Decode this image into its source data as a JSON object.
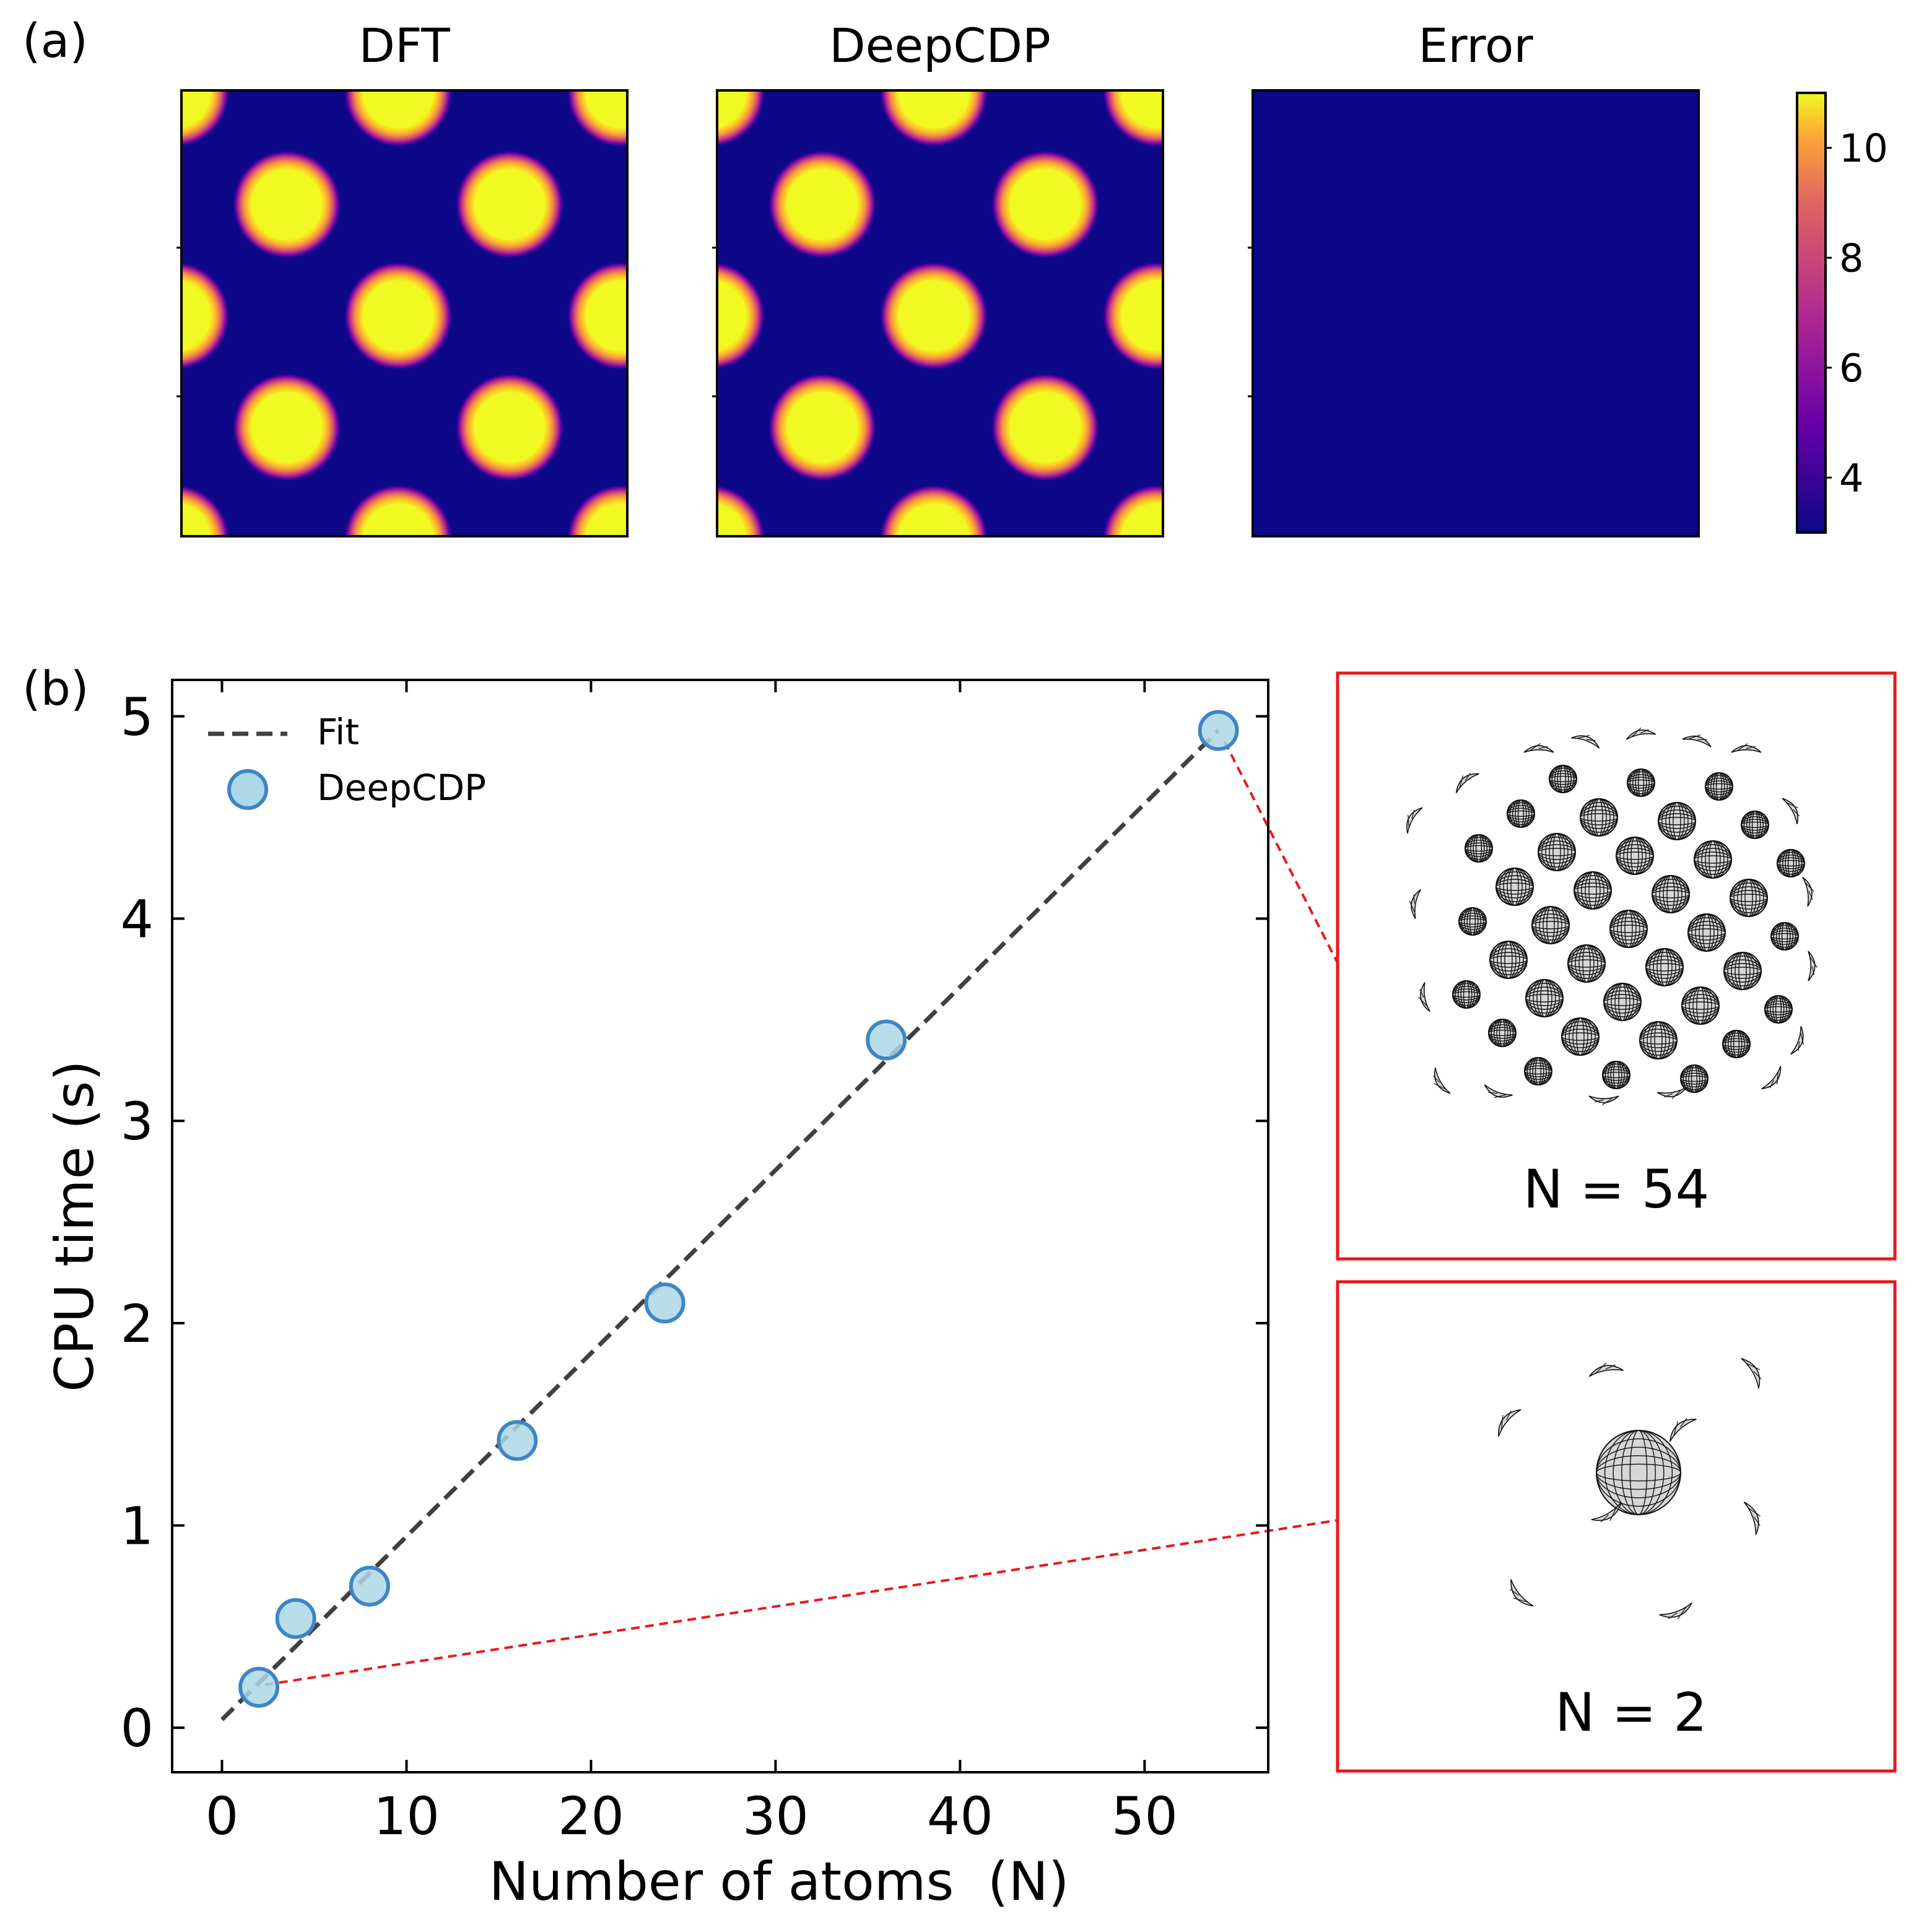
{
  "panel_a": {
    "label": "(a)",
    "titles": [
      "DFT",
      "DeepCDP",
      "Error"
    ],
    "colorbar": {
      "min": 3,
      "max": 11,
      "ticks": [
        "4",
        "6",
        "8",
        "10"
      ],
      "colormap": "plasma"
    },
    "colors": {
      "background": "#0d0887",
      "peak": "#f0f921"
    }
  },
  "panel_b": {
    "label": "(b)",
    "inset_top_label": "N = 54",
    "inset_bottom_label": "N = 2",
    "highlight_color": "#e8191c"
  },
  "chart_data": {
    "type": "scatter",
    "title": "",
    "xlabel": "Number of atoms  (N)",
    "ylabel": "CPU time (s)",
    "xlim": [
      -2.7,
      56.7
    ],
    "ylim": [
      -0.22,
      5.18
    ],
    "xticks": [
      0,
      10,
      20,
      30,
      40,
      50
    ],
    "yticks": [
      0,
      1,
      2,
      3,
      4,
      5
    ],
    "legend_position": "top-left",
    "series": [
      {
        "name": "DeepCDP",
        "kind": "scatter",
        "color": "#add8e6",
        "edge": "#3d85c6",
        "x": [
          2,
          4,
          8,
          16,
          24,
          36,
          54
        ],
        "y": [
          0.2,
          0.54,
          0.7,
          1.42,
          2.1,
          3.4,
          4.93
        ]
      },
      {
        "name": "Fit",
        "kind": "line",
        "style": "dashed",
        "color": "#404040",
        "x": [
          0,
          54
        ],
        "y": [
          0.04,
          4.93
        ]
      }
    ]
  }
}
